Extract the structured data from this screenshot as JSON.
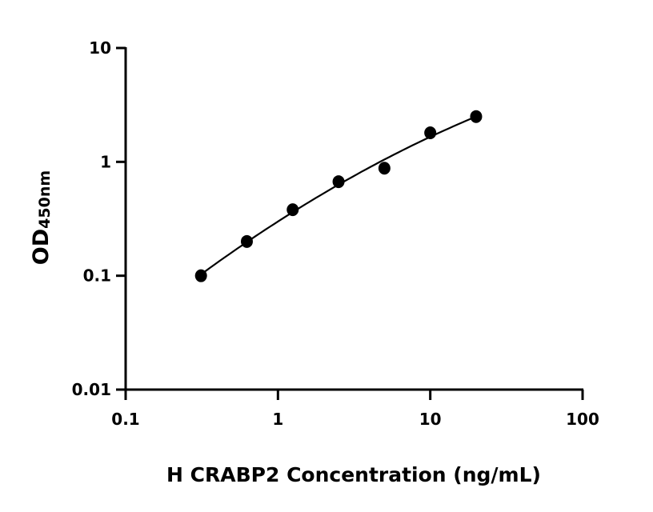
{
  "chart_data": {
    "type": "scatter",
    "title": "",
    "xlabel": "H CRABP2 Concentration (ng/mL)",
    "ylabel": "OD",
    "ylabel_subscript": "450nm",
    "xscale": "log",
    "yscale": "log",
    "xlim": [
      0.1,
      100
    ],
    "ylim": [
      0.01,
      10
    ],
    "x_ticks": [
      "0.1",
      "1",
      "10",
      "100"
    ],
    "y_ticks": [
      "0.01",
      "0.1",
      "1",
      "10"
    ],
    "grid": false,
    "legend": "none",
    "fit_curve": true,
    "marker_color": "#000000",
    "x": [
      0.3125,
      0.625,
      1.25,
      2.5,
      5,
      10,
      20
    ],
    "y": [
      0.1,
      0.2,
      0.38,
      0.67,
      0.88,
      1.8,
      2.5
    ]
  }
}
